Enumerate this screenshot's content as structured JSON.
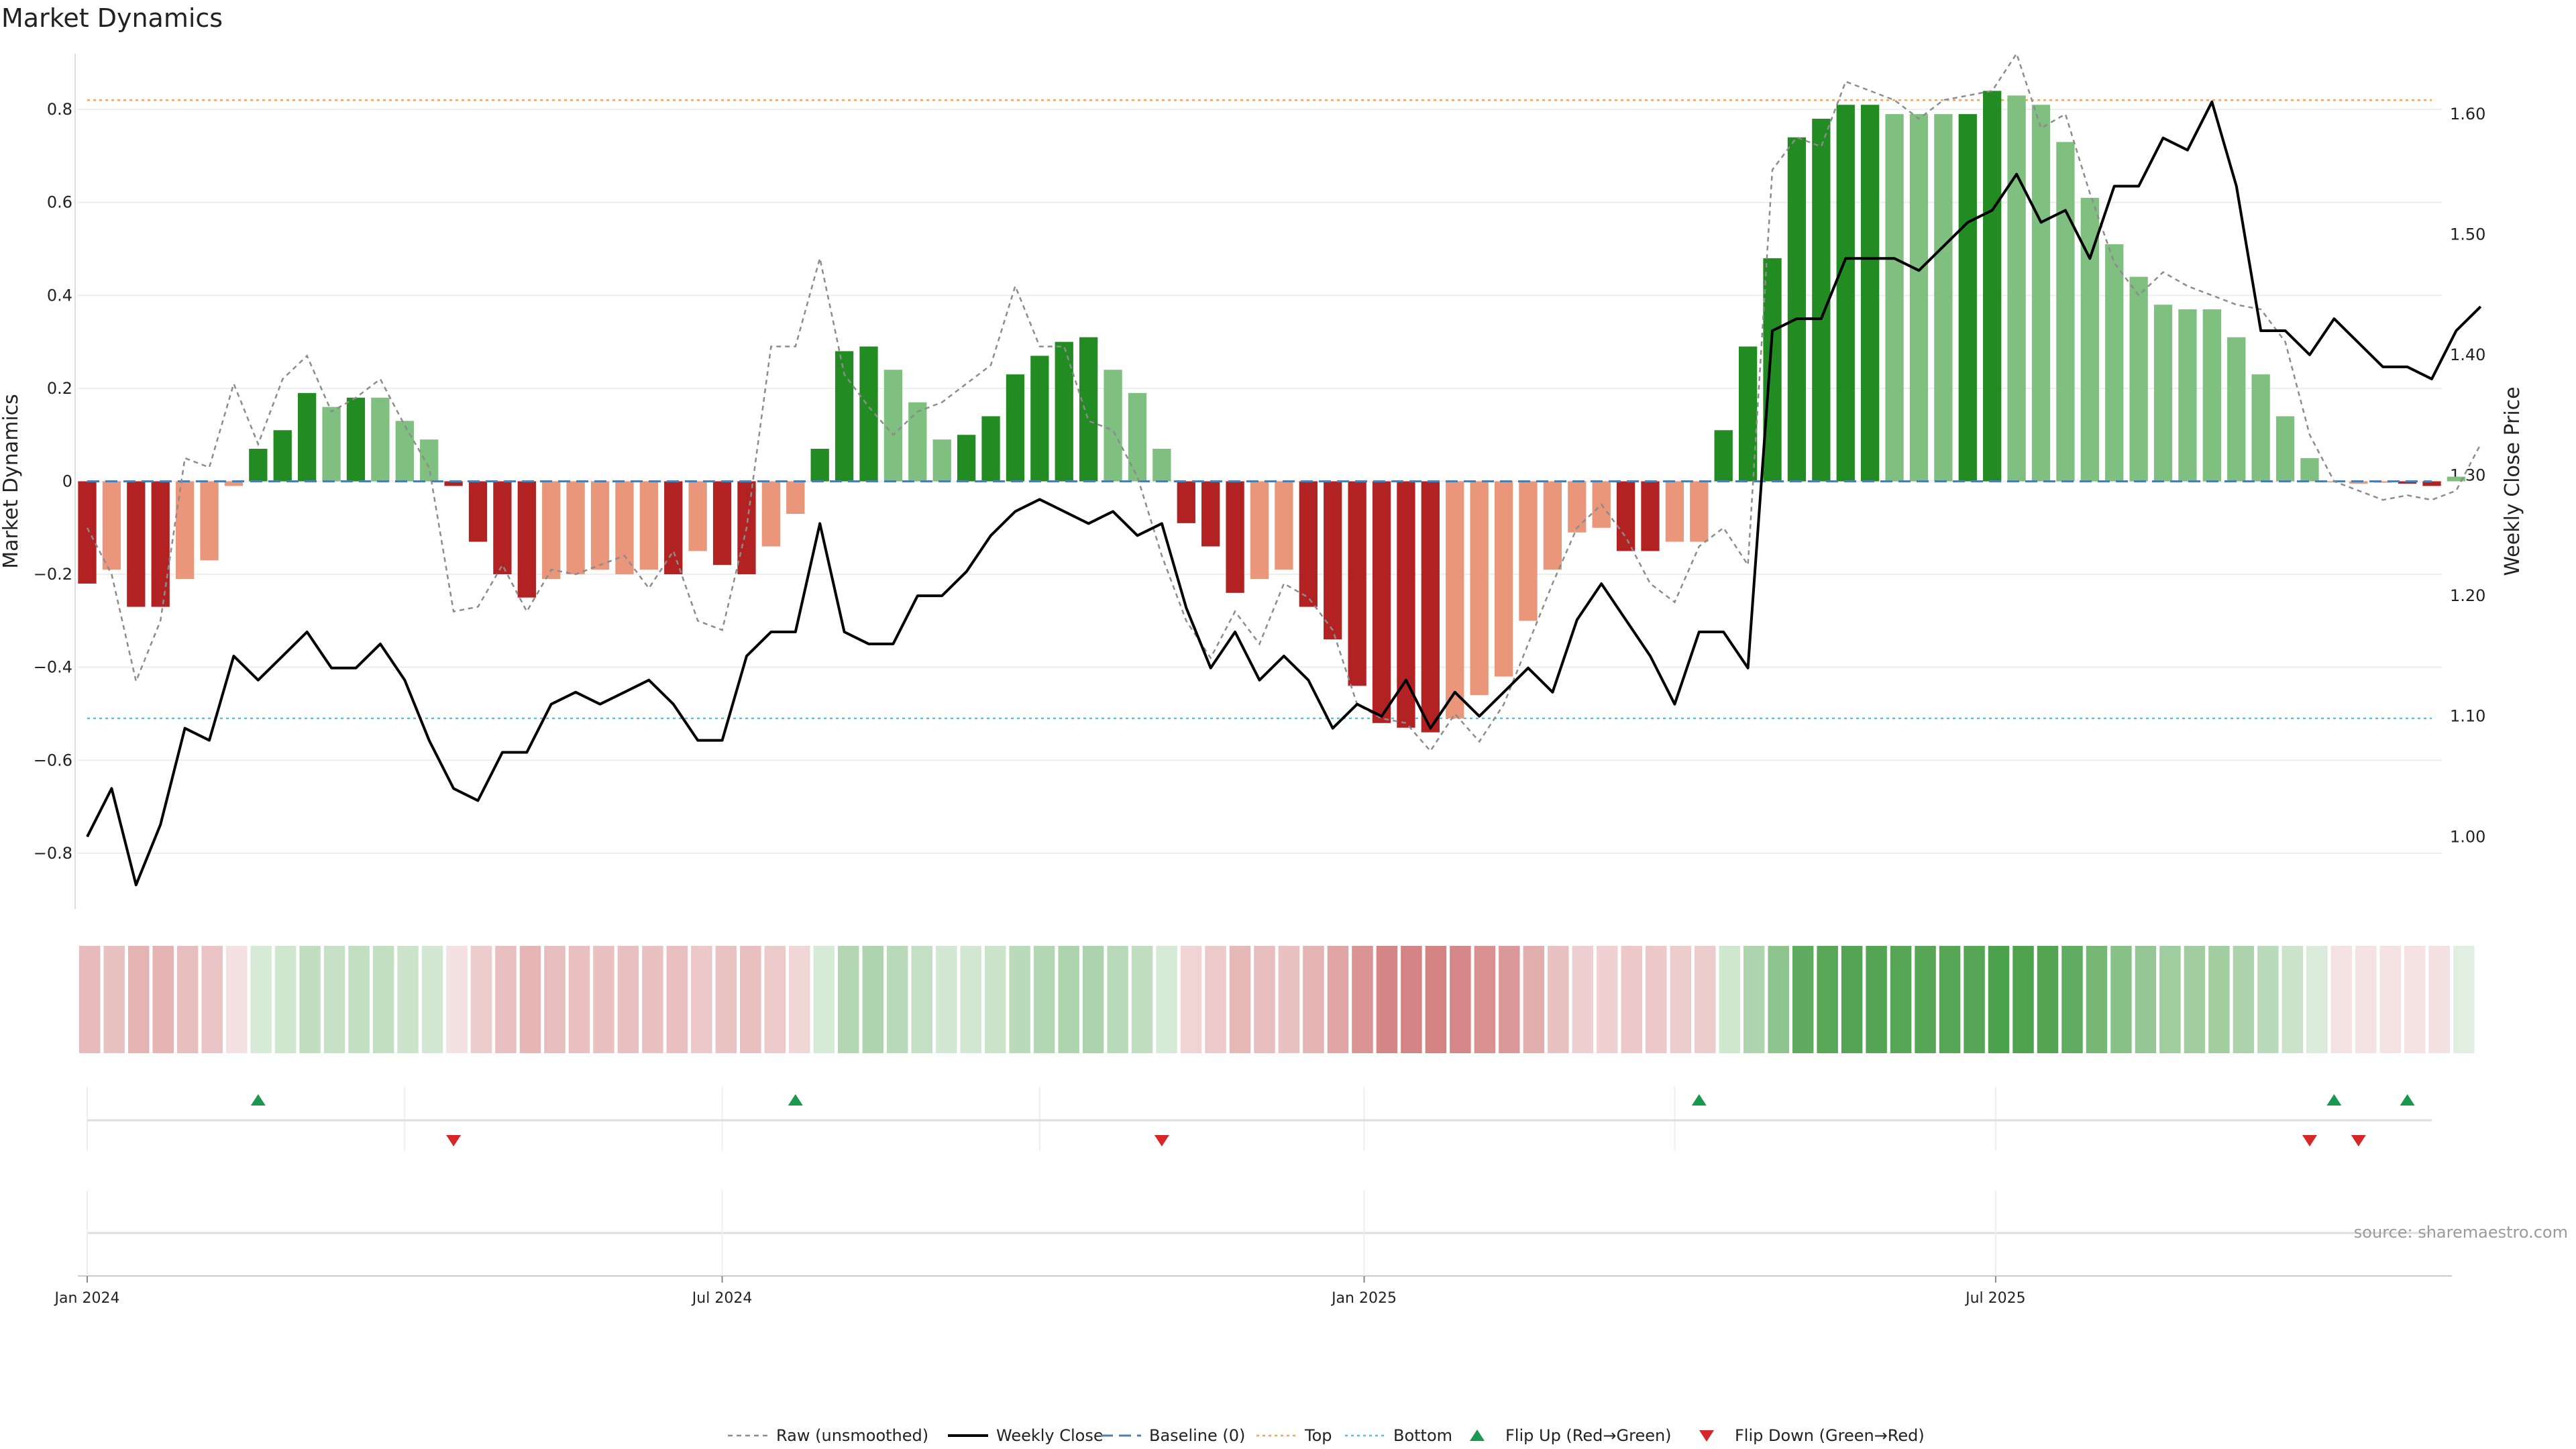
{
  "title": "Market Dynamics",
  "source": "source: sharemaestro.com",
  "colors": {
    "strong_green": "#228b22",
    "light_green": "#7fbf7f",
    "strong_red": "#b22222",
    "light_red": "#e9967a",
    "baseline": "#4a7fb5",
    "top": "#f4a460",
    "bottom": "#5bc0de",
    "flip_up": "#1a9850",
    "flip_down": "#d62728",
    "raw": "#8c8c8c",
    "close": "#000000"
  },
  "chart_data": {
    "type": "bar",
    "start_date": "2024-01-01",
    "week_count": 97,
    "x_ticks": [
      {
        "date": "2024-01-01",
        "label": "Jan 2024"
      },
      {
        "date": "2024-07-01",
        "label": "Jul 2024"
      },
      {
        "date": "2025-01-01",
        "label": "Jan 2025"
      },
      {
        "date": "2025-07-01",
        "label": "Jul 2025"
      }
    ],
    "ylabel": "Market Dynamics",
    "ylabel_right": "Weekly Close Price",
    "ylim": [
      -0.92,
      0.92
    ],
    "ylim_right": [
      0.94,
      1.65
    ],
    "yticks": [
      "0.8",
      "0.6",
      "0.4",
      "0.2",
      "0",
      "−0.2",
      "−0.4",
      "−0.6",
      "−0.8"
    ],
    "yticks_right": [
      "1.60",
      "1.50",
      "1.40",
      "1.30",
      "1.20",
      "1.10",
      "1.00"
    ],
    "top_line": 0.82,
    "bottom_line": -0.51,
    "baseline": 0,
    "grid": true,
    "legend_position": "bottom",
    "series": [
      {
        "name": "Weekly Close",
        "kind": "line",
        "axis": "right",
        "values": [
          1.0,
          1.04,
          0.96,
          1.01,
          1.09,
          1.08,
          1.15,
          1.13,
          1.15,
          1.17,
          1.14,
          1.14,
          1.16,
          1.13,
          1.08,
          1.04,
          1.03,
          1.07,
          1.07,
          1.11,
          1.12,
          1.11,
          1.12,
          1.13,
          1.11,
          1.08,
          1.08,
          1.15,
          1.17,
          1.17,
          1.26,
          1.17,
          1.16,
          1.16,
          1.2,
          1.2,
          1.22,
          1.25,
          1.27,
          1.28,
          1.27,
          1.26,
          1.27,
          1.25,
          1.26,
          1.19,
          1.14,
          1.17,
          1.13,
          1.15,
          1.13,
          1.09,
          1.11,
          1.1,
          1.13,
          1.09,
          1.12,
          1.1,
          1.12,
          1.14,
          1.12,
          1.18,
          1.21,
          1.18,
          1.15,
          1.11,
          1.17,
          1.17,
          1.14,
          1.42,
          1.43,
          1.43,
          1.48,
          1.48,
          1.48,
          1.47,
          1.49,
          1.51,
          1.52,
          1.55,
          1.51,
          1.52,
          1.48,
          1.54,
          1.54,
          1.58,
          1.57,
          1.61,
          1.54,
          1.42,
          1.42,
          1.4,
          1.43,
          1.41,
          1.39,
          1.39,
          1.38,
          1.42,
          1.44
        ]
      },
      {
        "name": "Raw (unsmoothed)",
        "kind": "line-dashed",
        "axis": "left",
        "values": [
          -0.1,
          -0.2,
          -0.43,
          -0.3,
          0.05,
          0.03,
          0.21,
          0.08,
          0.22,
          0.27,
          0.15,
          0.18,
          0.22,
          0.12,
          0.03,
          -0.28,
          -0.27,
          -0.18,
          -0.28,
          -0.19,
          -0.2,
          -0.18,
          -0.16,
          -0.23,
          -0.15,
          -0.3,
          -0.32,
          -0.1,
          0.29,
          0.29,
          0.48,
          0.23,
          0.16,
          0.1,
          0.15,
          0.17,
          0.21,
          0.25,
          0.42,
          0.29,
          0.29,
          0.13,
          0.11,
          0.01,
          -0.16,
          -0.3,
          -0.38,
          -0.28,
          -0.35,
          -0.22,
          -0.25,
          -0.32,
          -0.48,
          -0.51,
          -0.52,
          -0.58,
          -0.5,
          -0.56,
          -0.48,
          -0.35,
          -0.22,
          -0.1,
          -0.05,
          -0.12,
          -0.22,
          -0.26,
          -0.14,
          -0.1,
          -0.18,
          0.67,
          0.74,
          0.72,
          0.86,
          0.84,
          0.82,
          0.78,
          0.82,
          0.83,
          0.84,
          0.92,
          0.76,
          0.79,
          0.62,
          0.47,
          0.4,
          0.45,
          0.42,
          0.4,
          0.38,
          0.37,
          0.3,
          0.1,
          0.0,
          -0.02,
          -0.04,
          -0.03,
          -0.04,
          -0.02,
          0.08
        ]
      },
      {
        "name": "Market Dynamics",
        "kind": "bar",
        "axis": "left",
        "values": [
          -0.22,
          -0.19,
          -0.27,
          -0.27,
          -0.21,
          -0.17,
          -0.01,
          0.07,
          0.11,
          0.19,
          0.16,
          0.18,
          0.18,
          0.13,
          0.09,
          -0.01,
          -0.13,
          -0.2,
          -0.25,
          -0.21,
          -0.2,
          -0.19,
          -0.2,
          -0.19,
          -0.2,
          -0.15,
          -0.18,
          -0.2,
          -0.14,
          -0.07,
          0.07,
          0.28,
          0.29,
          0.24,
          0.17,
          0.09,
          0.1,
          0.14,
          0.23,
          0.27,
          0.3,
          0.31,
          0.24,
          0.19,
          0.07,
          -0.09,
          -0.14,
          -0.24,
          -0.21,
          -0.19,
          -0.27,
          -0.34,
          -0.44,
          -0.52,
          -0.53,
          -0.54,
          -0.51,
          -0.46,
          -0.42,
          -0.3,
          -0.19,
          -0.11,
          -0.1,
          -0.15,
          -0.15,
          -0.13,
          -0.13,
          0.11,
          0.29,
          0.48,
          0.74,
          0.78,
          0.81,
          0.81,
          0.79,
          0.79,
          0.79,
          0.79,
          0.84,
          0.83,
          0.81,
          0.73,
          0.61,
          0.51,
          0.44,
          0.38,
          0.37,
          0.37,
          0.31,
          0.23,
          0.14,
          0.05,
          -0.002,
          -0.005,
          -0.003,
          -0.005,
          -0.01,
          0.01
        ],
        "shade": [
          "strong",
          "light",
          "strong",
          "strong",
          "light",
          "light",
          "light",
          "strong",
          "strong",
          "strong",
          "light",
          "strong",
          "light",
          "light",
          "light",
          "strong",
          "strong",
          "strong",
          "strong",
          "light",
          "light",
          "light",
          "light",
          "light",
          "strong",
          "light",
          "strong",
          "strong",
          "light",
          "light",
          "strong",
          "strong",
          "strong",
          "light",
          "light",
          "light",
          "strong",
          "strong",
          "strong",
          "strong",
          "strong",
          "strong",
          "light",
          "light",
          "light",
          "strong",
          "strong",
          "strong",
          "light",
          "light",
          "strong",
          "strong",
          "strong",
          "strong",
          "strong",
          "strong",
          "light",
          "light",
          "light",
          "light",
          "light",
          "light",
          "light",
          "strong",
          "strong",
          "light",
          "light",
          "strong",
          "strong",
          "strong",
          "strong",
          "strong",
          "strong",
          "strong",
          "light",
          "light",
          "light",
          "strong",
          "strong",
          "light",
          "light",
          "light",
          "light",
          "light",
          "light",
          "light",
          "light",
          "light",
          "light",
          "light",
          "light",
          "light",
          "light",
          "light",
          "light",
          "strong",
          "strong"
        ]
      }
    ],
    "flip_up_weeks": [
      7,
      29,
      66,
      92,
      95
    ],
    "flip_down_weeks": [
      15,
      44,
      91,
      93
    ]
  },
  "legend": [
    {
      "key": "raw",
      "label": "Raw (unsmoothed)"
    },
    {
      "key": "close",
      "label": "Weekly Close"
    },
    {
      "key": "baseline",
      "label": "Baseline (0)"
    },
    {
      "key": "top",
      "label": "Top"
    },
    {
      "key": "bottom",
      "label": "Bottom"
    },
    {
      "key": "flip_up",
      "label": "Flip Up (Red→Green)"
    },
    {
      "key": "flip_down",
      "label": "Flip Down (Green→Red)"
    }
  ]
}
